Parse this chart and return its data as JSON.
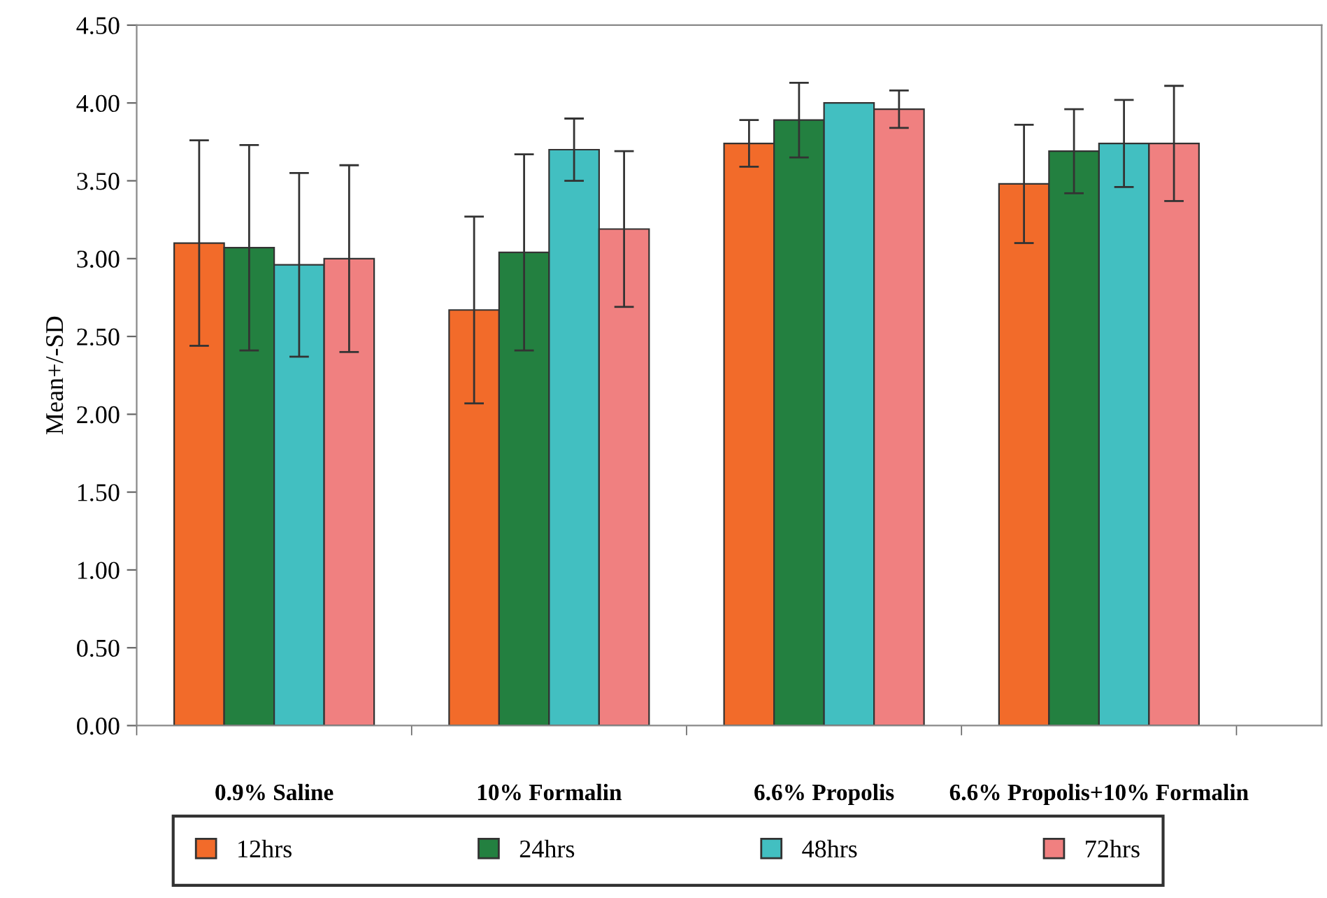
{
  "chart_data": {
    "type": "bar",
    "ylabel": "Mean+/-SD",
    "categories": [
      "0.9% Saline",
      "10% Formalin",
      "6.6% Propolis",
      "6.6% Propolis+10% Formalin"
    ],
    "series": [
      {
        "name": "12hrs",
        "color": "#f26b2a",
        "values": [
          3.1,
          2.67,
          3.74,
          3.48
        ],
        "errors": [
          0.66,
          0.6,
          0.15,
          0.38
        ]
      },
      {
        "name": "24hrs",
        "color": "#238040",
        "values": [
          3.07,
          3.04,
          3.89,
          3.69
        ],
        "errors": [
          0.66,
          0.63,
          0.24,
          0.27
        ]
      },
      {
        "name": "48hrs",
        "color": "#42bfc1",
        "values": [
          2.96,
          3.7,
          4.0,
          3.74
        ],
        "errors": [
          0.59,
          0.2,
          null,
          0.28
        ]
      },
      {
        "name": "72hrs",
        "color": "#f08080",
        "values": [
          3.0,
          3.19,
          3.96,
          3.74
        ],
        "errors": [
          0.6,
          0.5,
          0.12,
          0.37
        ]
      }
    ],
    "ylim": [
      0,
      4.5
    ],
    "yticks": [
      {
        "value": 0,
        "label": "0.00"
      },
      {
        "value": 0.5,
        "label": "0.50"
      },
      {
        "value": 1,
        "label": "1.00"
      },
      {
        "value": 1.5,
        "label": "1.50"
      },
      {
        "value": 2,
        "label": "2.00"
      },
      {
        "value": 2.5,
        "label": "2.50"
      },
      {
        "value": 3,
        "label": "3.00"
      },
      {
        "value": 3.5,
        "label": "3.50"
      },
      {
        "value": 4,
        "label": "4.00"
      },
      {
        "value": 4.5,
        "label": "4.50"
      }
    ],
    "legend": "bottom",
    "grid": false
  }
}
